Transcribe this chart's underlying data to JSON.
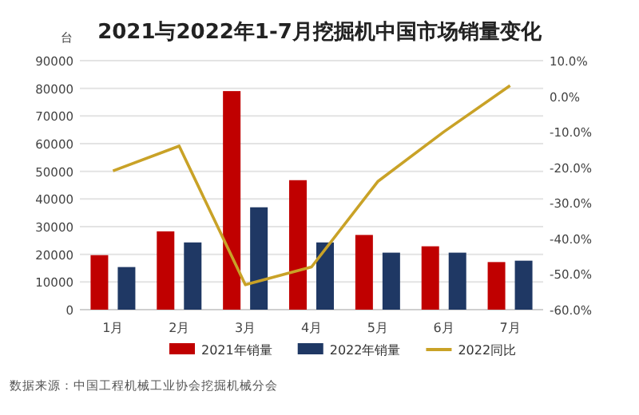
{
  "chart_data": {
    "type": "bar",
    "title": "2021与2022年1-7月挖掘机中国市场销量变化",
    "ylabel": "台",
    "annotations": [
      "数据来源：中国工程机械工业协会挖掘机械分会"
    ],
    "categories": [
      "1月",
      "2月",
      "3月",
      "4月",
      "5月",
      "6月",
      "7月"
    ],
    "series": [
      {
        "name": "2021年销量",
        "color": "#c00000",
        "values": [
          19700,
          28300,
          79000,
          46800,
          27000,
          22900,
          17200
        ]
      },
      {
        "name": "2022年销量",
        "color": "#1f3864",
        "values": [
          15400,
          24300,
          37000,
          24300,
          20600,
          20600,
          17700
        ]
      },
      {
        "name": "2022同比",
        "type": "line",
        "axis": "y2",
        "color": "#c9a227",
        "values": [
          -21,
          -14,
          -53,
          -48,
          -24,
          -10,
          3
        ]
      }
    ],
    "ylim": [
      0,
      90000
    ],
    "yticks": [
      0,
      10000,
      20000,
      30000,
      40000,
      50000,
      60000,
      70000,
      80000,
      90000
    ],
    "y2lim": [
      -60,
      10
    ],
    "y2ticks": [
      {
        "value": 10,
        "label": "10.0%"
      },
      {
        "value": 0,
        "label": "0.0%"
      },
      {
        "value": -10,
        "label": "-10.0%"
      },
      {
        "value": -20,
        "label": "-20.0%"
      },
      {
        "value": -30,
        "label": "-30.0%"
      },
      {
        "value": -40,
        "label": "-40.0%"
      },
      {
        "value": -50,
        "label": "-50.0%"
      },
      {
        "value": -60,
        "label": "-60.0%"
      }
    ],
    "grid": "y",
    "legend": "bottom"
  }
}
